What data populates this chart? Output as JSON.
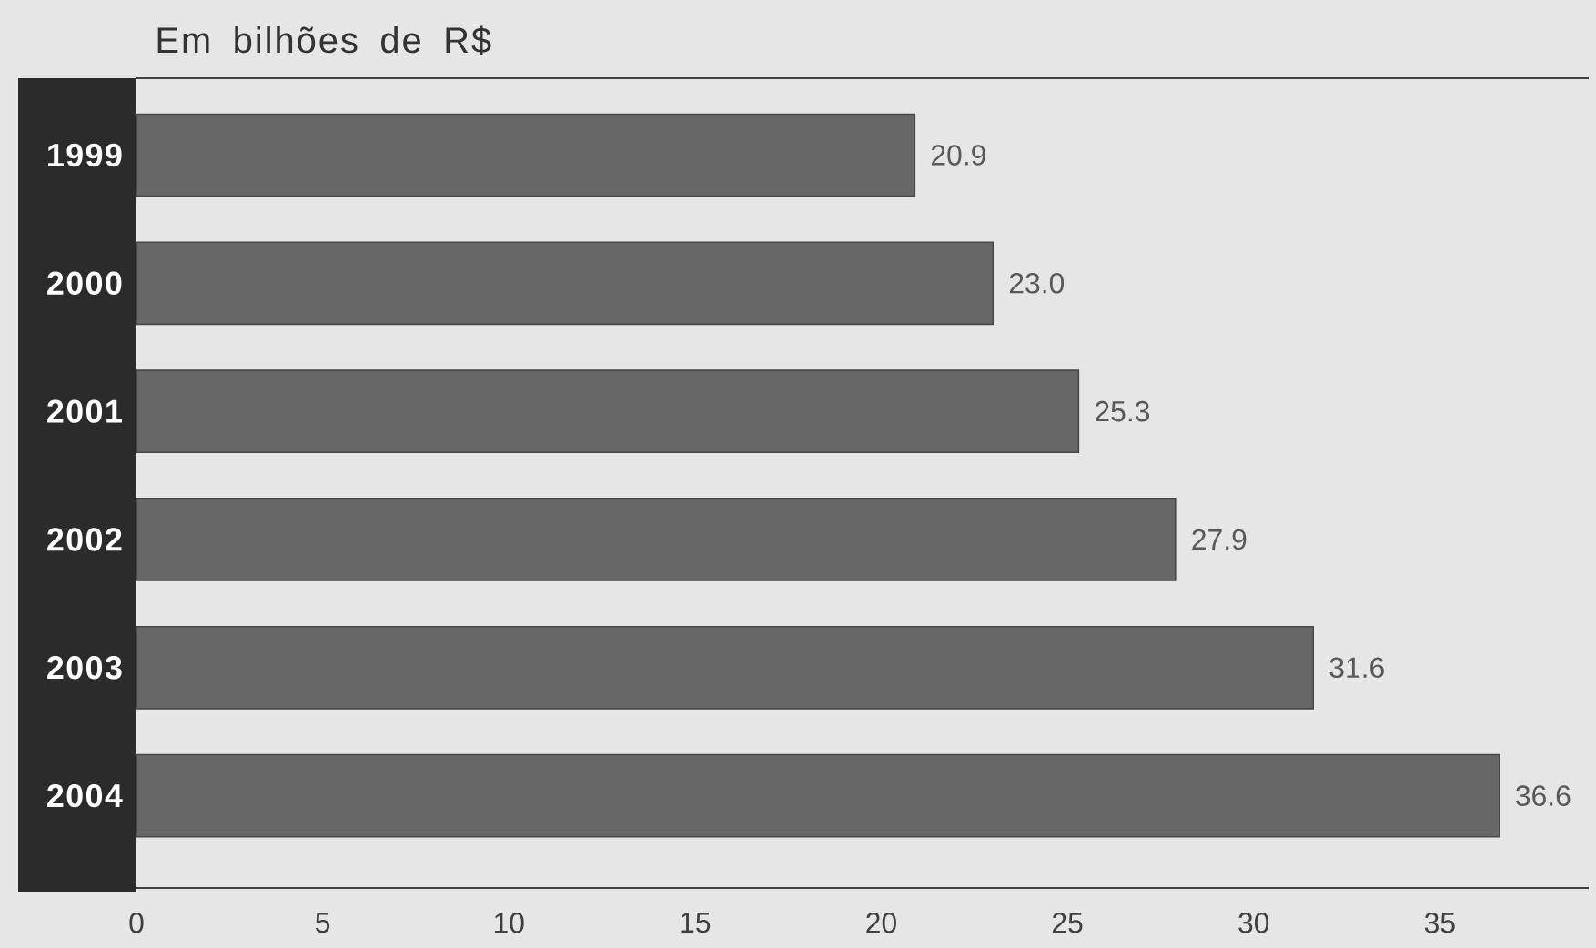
{
  "chart_data": {
    "type": "bar",
    "orientation": "horizontal",
    "title": "Em bilhões de R$",
    "categories": [
      "1999",
      "2000",
      "2001",
      "2002",
      "2003",
      "2004"
    ],
    "values": [
      20.9,
      23.0,
      25.3,
      27.9,
      31.6,
      36.6
    ],
    "value_labels": [
      "20.9",
      "23.0",
      "25.3",
      "27.9",
      "31.6",
      "36.6"
    ],
    "color": "#676767",
    "xlim": [
      0,
      39
    ],
    "xticks": [
      0,
      5,
      10,
      15,
      20,
      25,
      30,
      35
    ]
  }
}
